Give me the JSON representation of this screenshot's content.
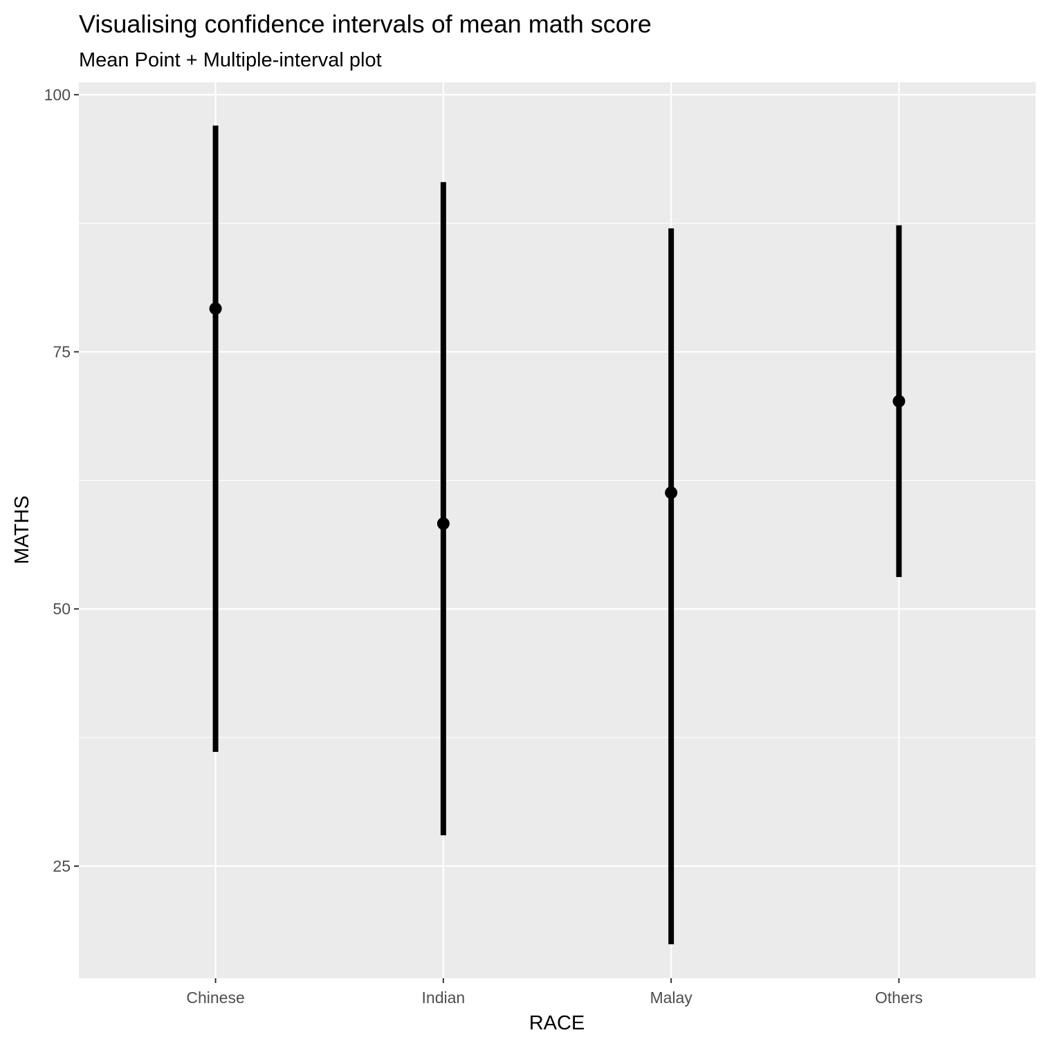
{
  "chart_data": {
    "type": "pointrange",
    "title": "Visualising confidence intervals of mean math score",
    "subtitle": "Mean Point + Multiple-interval plot",
    "xlabel": "RACE",
    "ylabel": "MATHS",
    "categories": [
      "Chinese",
      "Indian",
      "Malay",
      "Others"
    ],
    "mean": [
      79.2,
      58.3,
      61.3,
      70.2
    ],
    "lower": [
      36.1,
      28.0,
      17.4,
      53.1
    ],
    "upper": [
      97.0,
      91.5,
      87.0,
      87.3
    ],
    "y_ticks": [
      25,
      50,
      75,
      100
    ],
    "y_tick_labels": [
      "25",
      "50",
      "75",
      "100"
    ],
    "ylim": [
      14.1,
      101.2
    ],
    "grid": true,
    "legend": "none",
    "colors": {
      "panel_background": "#ebebeb",
      "gridline": "#ffffff",
      "interval": "#000000",
      "point": "#000000",
      "tick_text": "#4d4d4d",
      "tick_mark": "#333333"
    }
  }
}
